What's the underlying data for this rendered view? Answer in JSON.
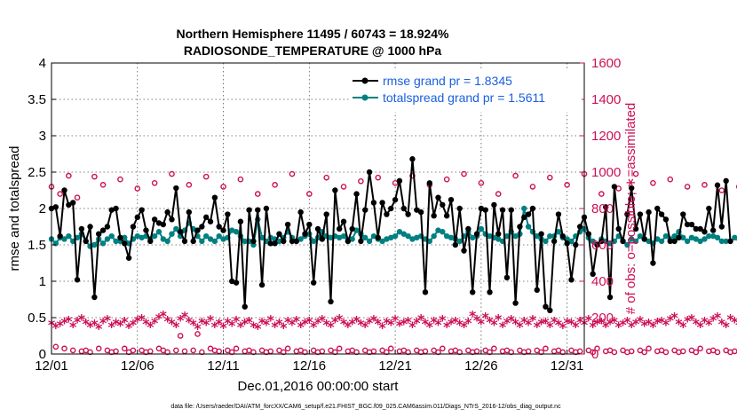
{
  "chart_data": {
    "type": "line",
    "title": "Northern Hemisphere 11495 / 60743 = 18.924%",
    "subtitle": "RADIOSONDE_TEMPERATURE @ 1000 hPa",
    "xlabel": "Dec.01,2016 00:00:00 start",
    "ylabel": "rmse and totalspread",
    "y2label": "# of obs: o=possible; ∗=assimilated",
    "footer": "data file: /Users/raeder/DAI/ATM_forcXX/CAM6_setup/f.e21.FHIST_BGC.f09_025.CAM6assim.011/Diags_NTrS_2016-12/obs_diag_output.nc",
    "xlim": [
      1,
      32
    ],
    "ylim": [
      0,
      4
    ],
    "y2lim": [
      0,
      1600
    ],
    "x_tick_values": [
      1,
      6,
      11,
      16,
      21,
      26,
      31
    ],
    "x_tick_labels": [
      "12/01",
      "12/06",
      "12/11",
      "12/16",
      "12/21",
      "12/26",
      "12/31"
    ],
    "y_tick_labels": [
      "0",
      "0.5",
      "1",
      "1.5",
      "2",
      "2.5",
      "3",
      "3.5",
      "4"
    ],
    "y2_tick_labels": [
      "0",
      "200",
      "400",
      "600",
      "800",
      "1000",
      "1200",
      "1400",
      "1600"
    ],
    "grid": true,
    "legend_position": "top-right",
    "colors": {
      "rmse": "#000000",
      "spread": "#008080",
      "obs": "#cc0f55"
    },
    "series": [
      {
        "name": "rmse grand pr = 1.8345",
        "axis": "left",
        "style": "line+dot",
        "x_start": 1,
        "x_step": 0.25,
        "values": [
          2.0,
          2.02,
          1.62,
          2.25,
          2.05,
          2.08,
          1.02,
          1.72,
          1.55,
          1.75,
          0.78,
          1.65,
          1.7,
          1.75,
          1.98,
          2.0,
          1.6,
          1.52,
          1.32,
          1.75,
          1.88,
          1.98,
          1.7,
          1.55,
          1.85,
          1.8,
          1.78,
          1.95,
          1.85,
          2.28,
          1.68,
          1.55,
          1.95,
          1.55,
          1.7,
          1.75,
          1.88,
          1.82,
          2.15,
          1.75,
          1.7,
          1.92,
          1.0,
          0.98,
          1.82,
          0.65,
          1.98,
          1.55,
          1.98,
          0.95,
          2.0,
          1.52,
          1.52,
          1.65,
          1.55,
          1.78,
          1.55,
          1.55,
          1.95,
          1.65,
          1.78,
          0.98,
          1.72,
          1.58,
          1.92,
          0.72,
          2.25,
          1.72,
          1.82,
          1.55,
          1.72,
          2.2,
          1.55,
          1.98,
          2.5,
          2.08,
          1.6,
          2.08,
          1.92,
          2.0,
          2.12,
          2.38,
          2.0,
          1.92,
          2.68,
          1.98,
          1.95,
          0.85,
          2.35,
          1.9,
          2.15,
          2.05,
          1.9,
          2.12,
          1.5,
          2.0,
          1.42,
          1.72,
          0.85,
          1.65,
          2.0,
          1.98,
          0.85,
          2.05,
          1.65,
          1.98,
          1.05,
          1.98,
          0.7,
          1.75,
          1.88,
          1.92,
          2.0,
          0.88,
          1.65,
          0.65,
          0.6,
          1.55,
          1.92,
          1.62,
          1.52,
          1.02,
          1.5,
          1.75,
          1.88,
          1.65,
          1.1,
          1.5,
          1.55,
          2.02,
          0.78,
          2.3,
          1.72,
          1.55,
          1.92,
          2.28,
          1.72,
          1.92,
          1.58,
          1.95,
          1.25,
          2.0,
          1.92,
          1.85,
          1.55,
          1.55,
          1.6,
          1.92,
          1.78,
          1.78,
          1.72,
          1.72,
          1.68,
          2.0,
          1.7,
          2.32,
          1.75,
          2.38,
          1.55
        ]
      },
      {
        "name": "totalspread grand pr = 1.5611",
        "axis": "left",
        "style": "line+dot",
        "x_start": 1,
        "x_step": 0.25,
        "values": [
          1.58,
          1.52,
          1.6,
          1.58,
          1.62,
          1.55,
          1.6,
          1.65,
          1.55,
          1.48,
          1.5,
          1.58,
          1.52,
          1.58,
          1.62,
          1.55,
          1.55,
          1.6,
          1.52,
          1.58,
          1.62,
          1.6,
          1.62,
          1.58,
          1.62,
          1.68,
          1.58,
          1.55,
          1.65,
          1.72,
          1.62,
          1.7,
          1.8,
          1.72,
          1.62,
          1.55,
          1.62,
          1.58,
          1.55,
          1.62,
          1.58,
          1.6,
          1.7,
          1.68,
          1.62,
          1.55,
          1.55,
          1.5,
          1.85,
          1.6,
          1.55,
          1.6,
          1.58,
          1.55,
          1.6,
          1.68,
          1.6,
          1.55,
          1.58,
          1.62,
          1.65,
          1.55,
          1.6,
          1.68,
          1.62,
          1.6,
          1.62,
          1.6,
          1.62,
          1.55,
          1.58,
          1.7,
          1.65,
          1.6,
          1.55,
          1.62,
          1.58,
          1.55,
          1.58,
          1.6,
          1.62,
          1.68,
          1.65,
          1.62,
          1.58,
          1.6,
          1.62,
          1.58,
          1.55,
          1.62,
          1.7,
          1.68,
          1.62,
          1.6,
          1.58,
          1.55,
          1.62,
          1.68,
          1.6,
          1.62,
          1.72,
          1.65,
          1.62,
          1.6,
          1.58,
          1.55,
          1.62,
          1.68,
          1.62,
          1.65,
          2.0,
          1.75,
          1.68,
          1.62,
          1.58,
          1.55,
          1.62,
          1.62,
          1.68,
          1.6,
          1.58,
          1.55,
          1.62,
          1.68,
          1.72,
          1.6,
          1.55,
          1.5,
          1.58,
          1.55,
          1.52,
          1.55,
          1.62,
          1.55,
          1.5,
          1.58,
          1.55,
          1.62,
          1.58,
          1.55,
          1.52,
          1.58,
          1.55,
          1.62,
          1.58,
          1.62,
          1.68,
          1.6,
          1.55,
          1.6,
          1.58,
          1.55,
          1.58,
          1.62,
          1.62,
          1.6,
          1.55,
          1.55,
          1.55,
          1.6,
          1.58,
          1.6,
          1.55
        ]
      },
      {
        "name": "possible (ob count)",
        "axis": "right",
        "style": "circle",
        "x_start": 1,
        "x_step": 0.25,
        "values": [
          920,
          40,
          880,
          30,
          980,
          20,
          860,
          15,
          20,
          10,
          975,
          30,
          930,
          20,
          10,
          15,
          960,
          30,
          10,
          20,
          910,
          20,
          10,
          15,
          940,
          30,
          20,
          10,
          990,
          20,
          100,
          15,
          930,
          20,
          110,
          10,
          975,
          30,
          20,
          15,
          920,
          20,
          10,
          30,
          960,
          15,
          20,
          10,
          880,
          20,
          10,
          15,
          930,
          20,
          10,
          30,
          990,
          15,
          20,
          10,
          880,
          20,
          10,
          15,
          970,
          20,
          10,
          30,
          920,
          15,
          20,
          10,
          950,
          20,
          10,
          15,
          970,
          20,
          10,
          30,
          940,
          15,
          20,
          10,
          980,
          20,
          10,
          15,
          930,
          20,
          10,
          30,
          960,
          15,
          20,
          10,
          990,
          20,
          10,
          15,
          940,
          20,
          10,
          30,
          880,
          15,
          20,
          10,
          980,
          20,
          10,
          15,
          920,
          20,
          10,
          30,
          970,
          15,
          20,
          10,
          930,
          20,
          10,
          15,
          990,
          20,
          10,
          30,
          880,
          15,
          20,
          10,
          910,
          20,
          10,
          15,
          990,
          20,
          10,
          30,
          940,
          15,
          20,
          10,
          960,
          20,
          10,
          15,
          920,
          20,
          10,
          30,
          930,
          15,
          20,
          10,
          900,
          20,
          10,
          15,
          920,
          20,
          10,
          30,
          910
        ]
      },
      {
        "name": "assimilated (ob count)",
        "axis": "right",
        "style": "asterisk",
        "x_start": 1,
        "x_step": 0.25,
        "values": [
          160,
          145,
          155,
          170,
          180,
          150,
          175,
          190,
          165,
          150,
          160,
          140,
          170,
          185,
          150,
          165,
          155,
          175,
          145,
          160,
          180,
          190,
          165,
          150,
          170,
          195,
          210,
          180,
          165,
          150,
          185,
          205,
          175,
          160,
          140,
          170,
          160,
          185,
          150,
          165,
          145,
          170,
          155,
          180,
          150,
          165,
          175,
          150,
          140,
          170,
          160,
          185,
          150,
          165,
          145,
          175,
          160,
          180,
          150,
          165,
          175,
          150,
          170,
          185,
          160,
          150,
          175,
          190,
          165,
          150,
          165,
          180,
          160,
          150,
          170,
          185,
          165,
          145,
          170,
          160,
          185,
          155,
          165,
          175,
          150,
          170,
          190,
          165,
          150,
          175,
          160,
          185,
          150,
          165,
          175,
          160,
          150,
          170,
          210,
          185,
          165,
          200,
          175,
          160,
          190,
          150,
          170,
          185,
          165,
          150,
          175,
          160,
          185,
          150,
          165,
          170,
          150,
          175,
          160,
          145,
          170,
          165,
          150,
          175,
          160,
          185,
          150,
          165,
          170,
          150,
          165,
          175,
          150,
          160,
          175,
          150,
          165,
          180,
          155,
          165,
          150,
          170,
          175,
          160,
          185,
          200,
          165,
          150,
          180,
          190,
          165,
          150,
          175,
          160,
          185,
          200,
          165,
          150,
          190,
          175,
          160,
          155,
          150
        ]
      }
    ]
  }
}
